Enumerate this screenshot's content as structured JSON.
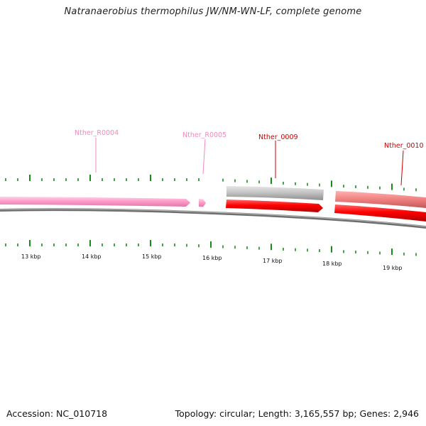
{
  "title": "Natranaerobius thermophilus JW/NM-WN-LF, complete genome",
  "footer": {
    "accession": "Accession: NC_010718",
    "summary": "Topology: circular; Length: 3,165,557 bp; Genes: 2,946"
  },
  "colors": {
    "rna_gene": "#ff9ccb",
    "rna_label": "#f089bb",
    "cds_forward": "#c0c0c0",
    "cds_reverse": "#ff0000",
    "cds_mixed": "#f08080",
    "coding_label": "#cc0000",
    "tick": "#1a8a1a",
    "backbone": "#808080"
  },
  "scale_labels": [
    "13 kbp",
    "14 kbp",
    "15 kbp",
    "16 kbp",
    "17 kbp",
    "18 kbp",
    "19 kbp"
  ],
  "features": [
    {
      "id": "Nther_R0004",
      "label": "Nther_R0004",
      "kind": "rna"
    },
    {
      "id": "Nther_R0005",
      "label": "Nther_R0005",
      "kind": "rna"
    },
    {
      "id": "Nther_0009",
      "label": "Nther_0009",
      "kind": "coding"
    },
    {
      "id": "Nther_0010",
      "label": "Nther_0010",
      "kind": "coding"
    }
  ]
}
